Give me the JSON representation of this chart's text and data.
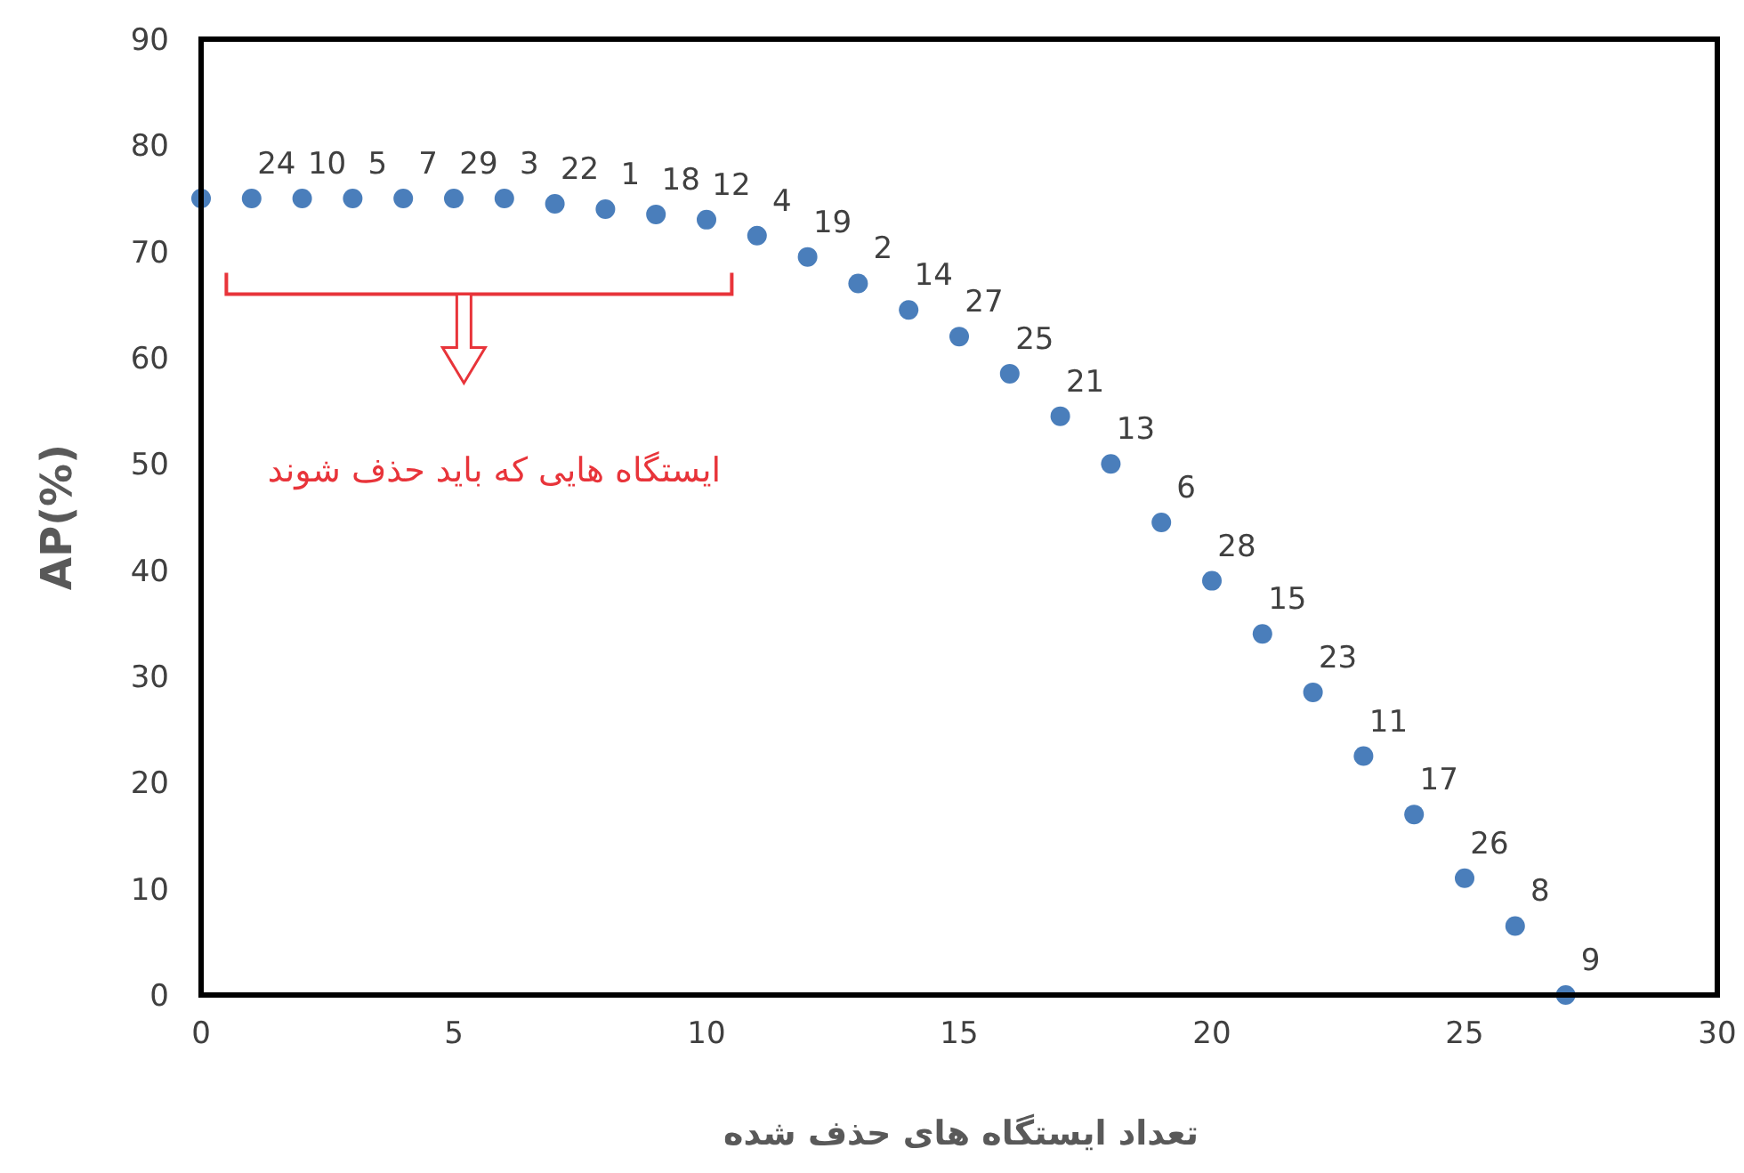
{
  "chart_data": {
    "type": "scatter",
    "xlabel": "تعداد ایستگاه های حذف شده",
    "ylabel": "AP(%)",
    "x": [
      0,
      1,
      2,
      3,
      4,
      5,
      6,
      7,
      8,
      9,
      10,
      11,
      12,
      13,
      14,
      15,
      16,
      17,
      18,
      19,
      20,
      21,
      22,
      23,
      24,
      25,
      26,
      27
    ],
    "series": [
      {
        "color": "#4a7ebb",
        "values": [
          75,
          75,
          75,
          75,
          75,
          75,
          75,
          74.5,
          74,
          73.5,
          73,
          71.5,
          69.5,
          67,
          64.5,
          62,
          58.5,
          54.5,
          50,
          44.5,
          39,
          34,
          28.5,
          22.5,
          17,
          11,
          6.5,
          0
        ]
      }
    ],
    "xlim": [
      0,
      30
    ],
    "xticks": [
      0,
      5,
      10,
      15,
      20,
      25,
      30
    ],
    "ylim": [
      0,
      90
    ],
    "yticks": [
      0,
      10,
      20,
      30,
      40,
      50,
      60,
      70,
      80,
      90
    ],
    "marker": "circle",
    "annotations": [
      "ایستگاه هایی که باید حذف شوند",
      {
        "text": "24",
        "x": 1,
        "y": 75
      },
      {
        "text": "10",
        "x": 2,
        "y": 75
      },
      {
        "text": "5",
        "x": 3,
        "y": 75
      },
      {
        "text": "7",
        "x": 4,
        "y": 75
      },
      {
        "text": "29",
        "x": 5,
        "y": 75
      },
      {
        "text": "3",
        "x": 6,
        "y": 75
      },
      {
        "text": "22",
        "x": 7,
        "y": 74.5
      },
      {
        "text": "1",
        "x": 8,
        "y": 74
      },
      {
        "text": "18",
        "x": 9,
        "y": 73.5
      },
      {
        "text": "12",
        "x": 10,
        "y": 73
      },
      {
        "text": "4",
        "x": 11,
        "y": 71.5
      },
      {
        "text": "19",
        "x": 12,
        "y": 69.5
      },
      {
        "text": "2",
        "x": 13,
        "y": 67
      },
      {
        "text": "14",
        "x": 14,
        "y": 64.5
      },
      {
        "text": "27",
        "x": 15,
        "y": 62
      },
      {
        "text": "25",
        "x": 16,
        "y": 58.5
      },
      {
        "text": "21",
        "x": 17,
        "y": 54.5
      },
      {
        "text": "13",
        "x": 18,
        "y": 50
      },
      {
        "text": "6",
        "x": 19,
        "y": 44.5
      },
      {
        "text": "28",
        "x": 20,
        "y": 39
      },
      {
        "text": "15",
        "x": 21,
        "y": 34
      },
      {
        "text": "23",
        "x": 22,
        "y": 28.5
      },
      {
        "text": "11",
        "x": 23,
        "y": 22.5
      },
      {
        "text": "17",
        "x": 24,
        "y": 17
      },
      {
        "text": "26",
        "x": 25,
        "y": 11
      },
      {
        "text": "8",
        "x": 26,
        "y": 6.5
      },
      {
        "text": "9",
        "x": 27,
        "y": 0
      }
    ]
  }
}
